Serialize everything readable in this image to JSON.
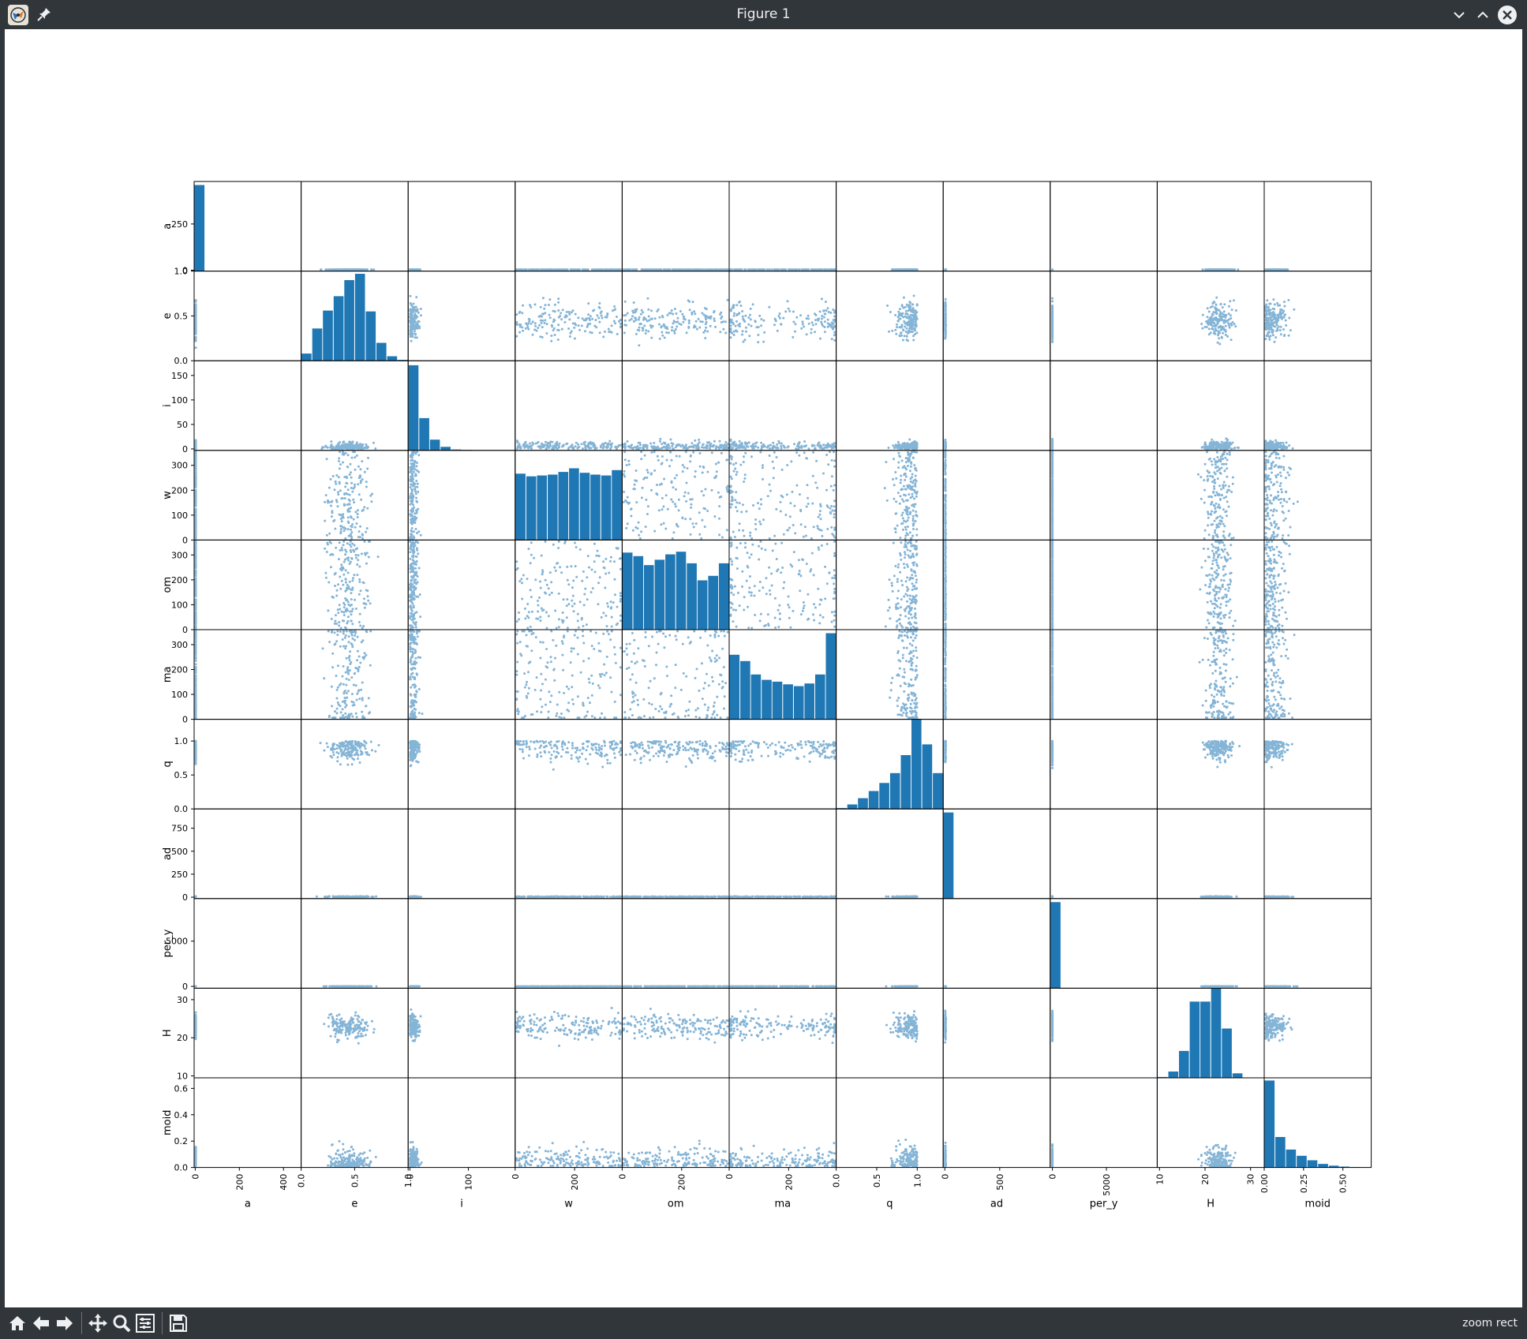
{
  "window": {
    "title": "Figure 1"
  },
  "status": {
    "message": "zoom rect"
  },
  "toolbar": {
    "buttons": [
      "home-icon",
      "back-icon",
      "forward-icon",
      "pan-icon",
      "zoom-icon",
      "configure-subplots-icon",
      "save-icon"
    ]
  },
  "colors": {
    "points": "#1f77b4",
    "chrome": "#31363b",
    "chrome_text": "#eff0f1"
  },
  "chart_data": {
    "type": "scatter",
    "variables": [
      "a",
      "e",
      "i",
      "w",
      "om",
      "ma",
      "q",
      "ad",
      "per_y",
      "H",
      "moid"
    ],
    "ranges": {
      "a": [
        -5,
        480
      ],
      "e": [
        0,
        1
      ],
      "i": [
        -3,
        180
      ],
      "w": [
        0,
        360
      ],
      "om": [
        0,
        360
      ],
      "ma": [
        0,
        360
      ],
      "q": [
        0,
        1.32
      ],
      "ad": [
        -15,
        960
      ],
      "per_y": [
        -200,
        9700
      ],
      "H": [
        9.5,
        33
      ],
      "moid": [
        0,
        0.68
      ]
    },
    "ticks": {
      "a": [
        0,
        250
      ],
      "e": [
        0.0,
        0.5,
        1.0
      ],
      "i": [
        0,
        50,
        100,
        150
      ],
      "w": [
        0,
        100,
        200,
        300
      ],
      "om": [
        0,
        100,
        200,
        300
      ],
      "ma": [
        0,
        100,
        200,
        300
      ],
      "q": [
        0.0,
        0.5,
        1.0
      ],
      "ad": [
        0,
        250,
        500,
        750
      ],
      "per_y": [
        0,
        5000
      ],
      "H": [
        10,
        20,
        30
      ],
      "moid": [
        0.0,
        0.2,
        0.4,
        0.6
      ]
    },
    "x_ticks": {
      "a": [
        0,
        200,
        400
      ],
      "e": [
        0.0,
        0.5,
        1.0
      ],
      "i": [
        0,
        100
      ],
      "w": [
        0,
        200
      ],
      "om": [
        0,
        200
      ],
      "ma": [
        0,
        200
      ],
      "q": [
        0.0,
        0.5,
        1.0
      ],
      "ad": [
        0,
        500
      ],
      "per_y": [
        0,
        5000
      ],
      "H": [
        10,
        20,
        30
      ],
      "moid": [
        0.0,
        0.25,
        0.5
      ]
    },
    "x_tick_labels": {
      "e": [
        "0.0",
        "0.5",
        "1.0"
      ],
      "q": [
        "0.0",
        "0.5",
        "1.0"
      ],
      "moid": [
        "0.00",
        "0.25",
        "0.50"
      ]
    },
    "y_tick_labels": {
      "e": [
        "0.0",
        "0.5",
        "1.0"
      ],
      "q": [
        "0.0",
        "0.5",
        "1.0"
      ],
      "moid": [
        "0.0",
        "0.2",
        "0.4",
        "0.6"
      ]
    },
    "histograms": {
      "a": [
        0.96,
        0.0,
        0,
        0,
        0,
        0,
        0,
        0,
        0,
        0
      ],
      "e": [
        0.08,
        0.36,
        0.56,
        0.72,
        0.9,
        0.97,
        0.55,
        0.2,
        0.05,
        0.01
      ],
      "i": [
        0.95,
        0.36,
        0.12,
        0.04,
        0.01,
        0.005,
        0.0,
        0.0,
        0.0,
        0.0
      ],
      "w": [
        0.74,
        0.71,
        0.72,
        0.73,
        0.76,
        0.8,
        0.75,
        0.73,
        0.72,
        0.78
      ],
      "om": [
        0.86,
        0.82,
        0.72,
        0.78,
        0.84,
        0.87,
        0.74,
        0.55,
        0.6,
        0.74
      ],
      "ma": [
        0.72,
        0.65,
        0.5,
        0.44,
        0.42,
        0.39,
        0.37,
        0.4,
        0.5,
        0.96
      ],
      "q": [
        0.01,
        0.05,
        0.12,
        0.2,
        0.29,
        0.4,
        0.6,
        1.0,
        0.72,
        0.4
      ],
      "ad": [
        0.96,
        0,
        0,
        0,
        0,
        0,
        0,
        0,
        0,
        0
      ],
      "per_y": [
        0.96,
        0,
        0,
        0,
        0,
        0,
        0,
        0,
        0,
        0
      ],
      "H": [
        0.01,
        0.07,
        0.3,
        0.85,
        0.85,
        1.0,
        0.55,
        0.05,
        0.0,
        0.0
      ],
      "moid": [
        0.97,
        0.34,
        0.2,
        0.13,
        0.08,
        0.04,
        0.02,
        0.01,
        0.005,
        0.002
      ]
    }
  }
}
